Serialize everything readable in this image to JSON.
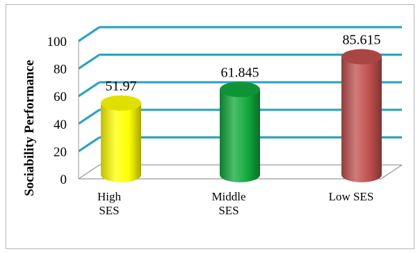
{
  "chart_data": {
    "type": "bar",
    "style": "3d-cylinder",
    "title": "",
    "xlabel": "",
    "ylabel": "Sociability Performance",
    "ylim": [
      0,
      100
    ],
    "yticks": [
      "0",
      "20",
      "40",
      "60",
      "80",
      "100"
    ],
    "grid": true,
    "categories": [
      [
        "High",
        "SES"
      ],
      [
        "Middle",
        "SES"
      ],
      [
        "Low SES"
      ]
    ],
    "values": [
      51.97,
      61.845,
      85.615
    ],
    "value_labels": [
      "51.97",
      "61.845",
      "85.615"
    ],
    "colors": [
      "#ffff00",
      "#10a83c",
      "#c0504d"
    ],
    "gridline_color": "#2ea3bf"
  }
}
